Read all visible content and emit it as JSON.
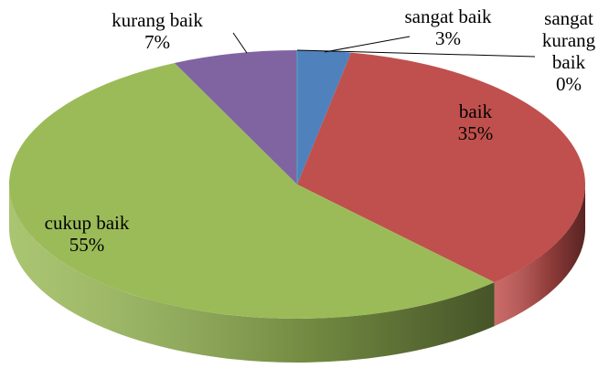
{
  "chart_data": {
    "type": "pie",
    "three_d": true,
    "categories": [
      "sangat baik",
      "baik",
      "cukup baik",
      "kurang baik",
      "sangat kurang baik"
    ],
    "values": [
      3,
      35,
      55,
      7,
      0
    ],
    "value_labels": [
      "3%",
      "35%",
      "55%",
      "7%",
      "0%"
    ],
    "colors": [
      "#4f81bd",
      "#c0504d",
      "#9bbb59",
      "#8064a2",
      "#4bacc6"
    ]
  }
}
